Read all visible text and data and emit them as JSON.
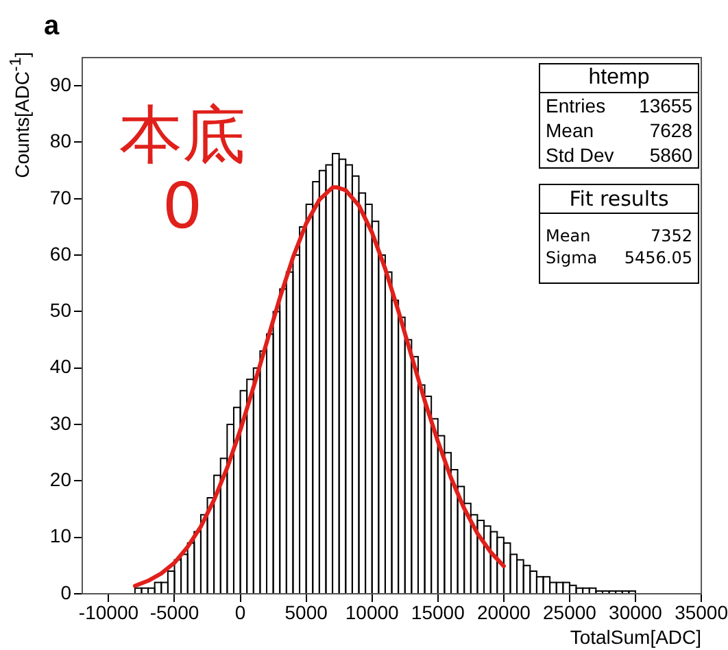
{
  "chart_data": {
    "type": "histogram",
    "title": "a",
    "xlabel": "TotalSum[ADC]",
    "ylabel": "Counts[ADC$^{-1}$]",
    "xlim": [
      -12000,
      35000
    ],
    "xticks": [
      -10000,
      -5000,
      0,
      5000,
      10000,
      15000,
      20000,
      25000,
      30000,
      35000
    ],
    "ylim": [
      0,
      95
    ],
    "yticks": [
      0,
      10,
      20,
      30,
      40,
      50,
      60,
      70,
      80,
      90
    ],
    "grid": false,
    "legend": false,
    "series": [
      {
        "color": "#000000",
        "bins": [
          -8000,
          -7500,
          -7000,
          -6500,
          -6000,
          -5500,
          -5000,
          -4500,
          -4000,
          -3500,
          -3000,
          -2500,
          -2000,
          -1500,
          -1000,
          -500,
          0,
          500,
          1000,
          1500,
          2000,
          2500,
          3000,
          3500,
          4000,
          4500,
          5000,
          5500,
          6000,
          6500,
          7000,
          7500,
          8000,
          8500,
          9000,
          9500,
          10000,
          10500,
          11000,
          11500,
          12000,
          12500,
          13000,
          13500,
          14000,
          14500,
          15000,
          15500,
          16000,
          16500,
          17000,
          17500,
          18000,
          18500,
          19000,
          19500,
          20000,
          20500,
          21000,
          21500,
          22000,
          22500,
          23000,
          23500,
          24000,
          24500,
          25000,
          25500,
          26000,
          26500,
          27000,
          27500,
          28000,
          28500,
          29000,
          29500,
          30000
        ],
        "values": [
          1,
          1,
          1,
          2,
          2,
          4,
          6,
          7,
          9,
          11,
          14,
          17,
          21,
          24,
          30,
          33,
          36,
          38,
          40,
          43,
          46,
          50,
          54,
          57,
          60,
          65,
          69,
          73,
          75,
          76,
          78,
          77,
          76,
          74,
          71,
          69,
          66,
          60,
          57,
          52,
          49,
          45,
          42,
          37,
          35,
          31,
          28,
          25,
          22,
          19,
          16,
          14,
          13,
          12,
          11,
          10,
          9,
          7,
          6,
          5,
          4,
          3,
          3,
          2,
          2,
          2,
          1.5,
          1,
          1,
          1,
          0.5,
          0.5,
          0.5,
          0.5,
          0.5,
          0.5
        ]
      },
      {
        "type": "line",
        "color": "#e0201b",
        "marker": "none",
        "line_style": "solid",
        "x": [
          -8000,
          -7000,
          -6000,
          -5000,
          -4000,
          -3000,
          -2000,
          -1000,
          0,
          1000,
          2000,
          3000,
          4000,
          5000,
          6000,
          7000,
          7352,
          8000,
          9000,
          10000,
          11000,
          12000,
          13000,
          14000,
          15000,
          16000,
          17000,
          18000,
          19000,
          20000
        ],
        "values": [
          1.4,
          2.3,
          3.6,
          5.5,
          8.3,
          11.9,
          16.6,
          22.3,
          29,
          36.6,
          44.5,
          52.4,
          59.6,
          65.6,
          69.8,
          72,
          72,
          71.5,
          68.8,
          64,
          57.6,
          50.1,
          42.1,
          34.2,
          27,
          20.5,
          15.1,
          10.7,
          7.4,
          4.9
        ]
      }
    ],
    "annotations": [
      "本底",
      "0",
      "htemp",
      "Entries",
      "13655",
      "Mean",
      "7628",
      "Std Dev",
      "5860",
      "Fit results",
      "Mean",
      "7352",
      "Sigma",
      "5456.05"
    ]
  }
}
